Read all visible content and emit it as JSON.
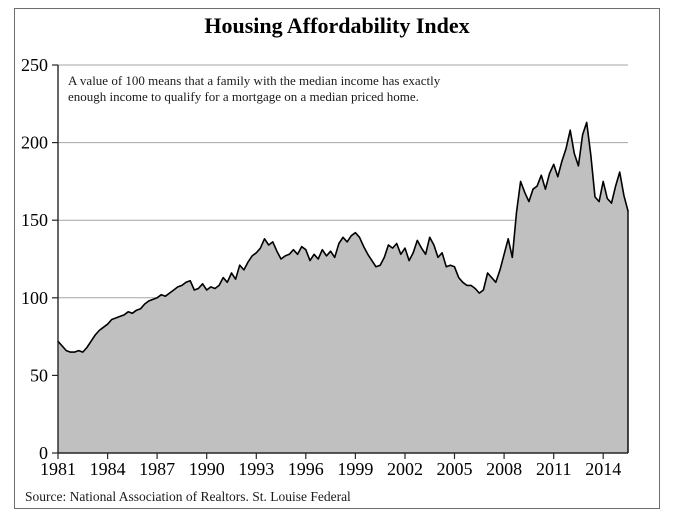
{
  "chart_data": {
    "type": "area",
    "title": "Housing Affordability Index",
    "annotation_lines": [
      "A value of 100 means that a family with the median income has exactly",
      "enough income to qualify for a mortgage on a median priced home."
    ],
    "source": "Source: National Association of Realtors. St. Louise Federal",
    "xlabel": "",
    "ylabel": "",
    "ylim": [
      0,
      250
    ],
    "y_ticks": [
      0,
      50,
      100,
      150,
      200,
      250
    ],
    "x_tick_labels": [
      "1981",
      "1984",
      "1987",
      "1990",
      "1993",
      "1996",
      "1999",
      "2002",
      "2005",
      "2008",
      "2011",
      "2014"
    ],
    "x_tick_years": [
      1981,
      1984,
      1987,
      1990,
      1993,
      1996,
      1999,
      2002,
      2005,
      2008,
      2011,
      2014
    ],
    "x_start_year": 1981.0,
    "x_end_year": 2015.5,
    "points_per_year": 4,
    "grid": "horizontal",
    "legend": "none",
    "series": [
      {
        "name": "Housing Affordability Index",
        "values": [
          72,
          69,
          66,
          65,
          65,
          66,
          65,
          68,
          72,
          76,
          79,
          81,
          83,
          86,
          87,
          88,
          89,
          91,
          90,
          92,
          93,
          96,
          98,
          99,
          100,
          102,
          101,
          103,
          105,
          107,
          108,
          110,
          111,
          105,
          106,
          109,
          105,
          107,
          106,
          108,
          113,
          110,
          116,
          112,
          121,
          118,
          123,
          127,
          129,
          132,
          138,
          134,
          136,
          130,
          125,
          127,
          128,
          131,
          128,
          133,
          131,
          124,
          128,
          125,
          131,
          127,
          130,
          126,
          135,
          139,
          136,
          140,
          142,
          139,
          133,
          128,
          124,
          120,
          121,
          126,
          134,
          132,
          135,
          128,
          132,
          124,
          129,
          137,
          132,
          128,
          139,
          134,
          126,
          129,
          120,
          121,
          120,
          113,
          110,
          108,
          108,
          106,
          103,
          105,
          116,
          113,
          110,
          118,
          128,
          138,
          126,
          155,
          175,
          168,
          162,
          170,
          172,
          179,
          170,
          180,
          186,
          178,
          188,
          196,
          208,
          193,
          185,
          205,
          213,
          192,
          165,
          162,
          175,
          164,
          161,
          172,
          181,
          166,
          156
        ]
      }
    ]
  },
  "colors": {
    "area_fill": "#c0c0c0",
    "data_line": "#000000",
    "gridline": "#a6a6a6",
    "axis_line": "#262626",
    "frame_border": "#6e6e6e",
    "text": "#000000"
  }
}
